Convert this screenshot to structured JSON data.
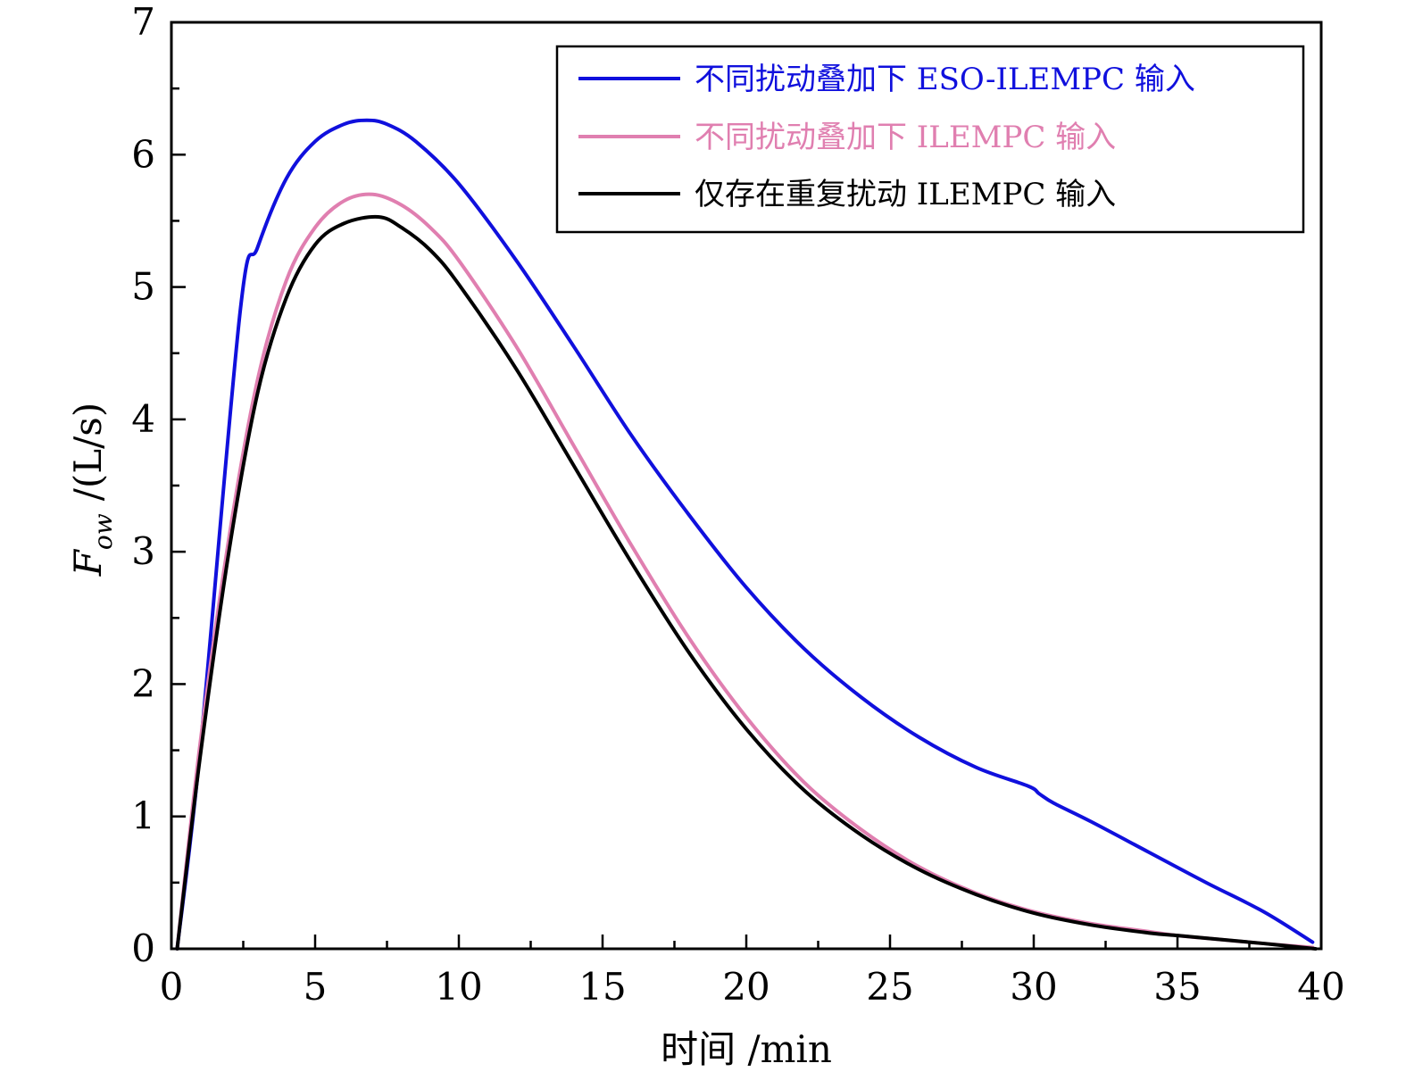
{
  "chart_data": {
    "type": "line",
    "title": "",
    "xlabel": "时间 /min",
    "ylabel_main": "F",
    "ylabel_sub": "ow",
    "ylabel_unit": "/(L/s)",
    "xlim": [
      0,
      40
    ],
    "ylim": [
      0,
      7
    ],
    "x_ticks": [
      0,
      5,
      10,
      15,
      20,
      25,
      30,
      35,
      40
    ],
    "y_ticks": [
      0,
      1,
      2,
      3,
      4,
      5,
      6,
      7
    ],
    "grid": false,
    "legend_position": "top-right",
    "series": [
      {
        "name": "不同扰动叠加下 ESO-ILEMPC 输入",
        "color": "#1010dd",
        "x": [
          0.2,
          1.0,
          2.4,
          3.0,
          4.0,
          5.0,
          6.0,
          6.8,
          7.5,
          8.5,
          10.0,
          12.0,
          14.0,
          16.0,
          18.0,
          20.0,
          22.0,
          24.0,
          26.0,
          28.0,
          29.8,
          30.2,
          30.7,
          32.0,
          34.0,
          36.0,
          38.0,
          39.7
        ],
        "y": [
          0.0,
          1.5,
          4.83,
          5.3,
          5.82,
          6.1,
          6.23,
          6.26,
          6.23,
          6.1,
          5.78,
          5.2,
          4.55,
          3.88,
          3.28,
          2.73,
          2.27,
          1.9,
          1.6,
          1.37,
          1.23,
          1.17,
          1.1,
          0.96,
          0.73,
          0.5,
          0.28,
          0.05
        ]
      },
      {
        "name": "不同扰动叠加下 ILEMPC 输入",
        "color": "#e07fb0",
        "x": [
          0.2,
          1.0,
          2.0,
          3.0,
          4.0,
          5.0,
          6.0,
          7.0,
          8.0,
          9.0,
          10.0,
          12.0,
          14.0,
          16.0,
          18.0,
          20.0,
          22.0,
          24.0,
          26.0,
          28.0,
          30.0,
          32.0,
          34.0,
          35.0,
          36.0,
          38.0,
          39.7
        ],
        "y": [
          0.0,
          1.55,
          3.1,
          4.3,
          5.05,
          5.45,
          5.65,
          5.7,
          5.62,
          5.45,
          5.2,
          4.55,
          3.8,
          3.05,
          2.35,
          1.75,
          1.26,
          0.9,
          0.62,
          0.42,
          0.28,
          0.19,
          0.13,
          0.1,
          0.08,
          0.04,
          0.01
        ]
      },
      {
        "name": "仅存在重复扰动 ILEMPC 输入",
        "color": "#000000",
        "x": [
          0.2,
          1.0,
          2.0,
          3.0,
          4.0,
          5.0,
          6.0,
          7.2,
          8.0,
          9.0,
          10.0,
          12.0,
          14.0,
          16.0,
          18.0,
          20.0,
          22.0,
          24.0,
          26.0,
          28.0,
          30.0,
          32.0,
          34.0,
          35.0,
          36.0,
          38.0,
          39.8
        ],
        "y": [
          0.0,
          1.45,
          3.0,
          4.2,
          4.92,
          5.32,
          5.48,
          5.53,
          5.45,
          5.28,
          5.02,
          4.38,
          3.65,
          2.92,
          2.24,
          1.66,
          1.2,
          0.86,
          0.6,
          0.41,
          0.27,
          0.18,
          0.12,
          0.1,
          0.08,
          0.04,
          0.0
        ]
      }
    ]
  }
}
